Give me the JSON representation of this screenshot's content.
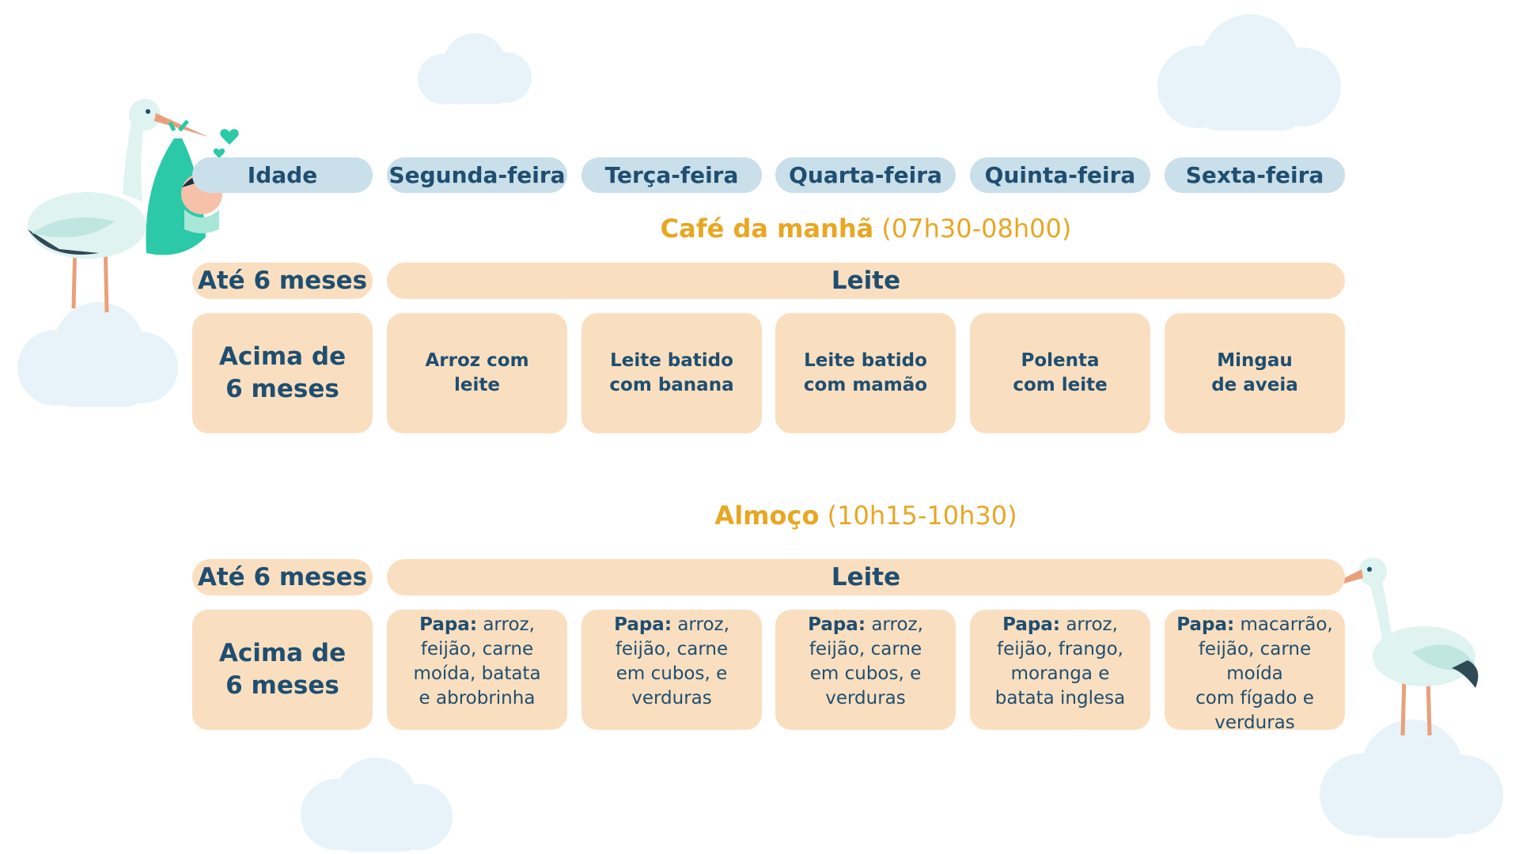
{
  "header": {
    "labels": [
      "Idade",
      "Segunda-feira",
      "Terça-feira",
      "Quarta-feira",
      "Quinta-feira",
      "Sexta-feira"
    ]
  },
  "breakfast": {
    "title": "Café da manhã",
    "time": "(07h30-08h00)",
    "under6_label": "Até 6 meses",
    "under6_value": "Leite",
    "over6_label": "Acima de\n6 meses",
    "items": [
      "Arroz com\nleite",
      "Leite batido\ncom banana",
      "Leite batido\ncom mamão",
      "Polenta\ncom leite",
      "Mingau\nde aveia"
    ]
  },
  "lunch": {
    "title": "Almoço",
    "time": "(10h15-10h30)",
    "under6_label": "Até 6 meses",
    "under6_value": "Leite",
    "over6_label": "Acima de\n6 meses",
    "items": [
      {
        "prefix": "Papa:",
        "text": " arroz,\nfeijão, carne\nmoída, batata\ne abrobrinha"
      },
      {
        "prefix": "Papa:",
        "text": " arroz,\nfeijão, carne\nem cubos, e\nverduras"
      },
      {
        "prefix": "Papa:",
        "text": " arroz,\nfeijão, carne\nem cubos, e\nverduras"
      },
      {
        "prefix": "Papa:",
        "text": " arroz,\nfeijão, frango,\nmoranga e\nbatata inglesa"
      },
      {
        "prefix": "Papa:",
        "text": " macarrão,\nfeijão, carne moída\ncom fígado e\nverduras"
      }
    ]
  },
  "colors": {
    "header_pill": "#c9dfe9",
    "peach": "#f9dfc0",
    "text_dark": "#1f4e70",
    "meal_title": "#e8a723",
    "cloud": "#e8f3f9",
    "stork_bag": "#2bc9a8"
  },
  "icons": [
    "cloud-icon",
    "stork-with-baby-icon",
    "stork-icon",
    "heart-icon"
  ]
}
